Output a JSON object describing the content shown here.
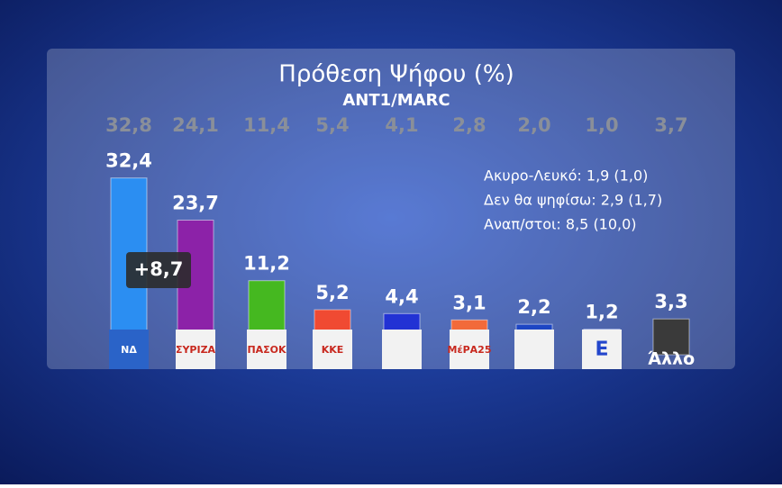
{
  "chart_data": {
    "type": "bar",
    "title": "Πρόθεση Ψήφου (%)",
    "subtitle": "ANT1/MARC",
    "categories": [
      "ΝΔ",
      "ΣΥΡΙΖΑ",
      "ΠΑΣΟΚ",
      "ΚΚΕ",
      null,
      "ΜέΡΑ25",
      null,
      "Ε",
      "Άλλο"
    ],
    "series": [
      {
        "values": [
          32.4,
          23.7,
          11.2,
          5.2,
          4.4,
          3.1,
          2.2,
          1.2,
          3.3
        ],
        "value_labels": [
          "32,4",
          "23,7",
          "11,2",
          "5,2",
          "4,4",
          "3,1",
          "2,2",
          "1,2",
          "3,3"
        ],
        "colors": [
          "#2b8ef2",
          "#8c22a8",
          "#45b820",
          "#f04a32",
          "#2232d4",
          "#f26a3a",
          "#1d46c4",
          "#2346cc",
          "#3a3a3a"
        ]
      },
      {
        "values": [
          32.8,
          24.1,
          11.4,
          5.4,
          4.1,
          2.8,
          2.0,
          1.0,
          3.7
        ],
        "value_labels": [
          "32,8",
          "24,1",
          "11,4",
          "5,4",
          "4,1",
          "2,8",
          "2,0",
          "1,0",
          "3,7"
        ],
        "color": "#8a8f99"
      }
    ],
    "annotation": "+8,7",
    "notes": [
      "Ακυρο-Λευκό: 1,9 (1,0)",
      "Δεν θα ψηφίσω: 2,9 (1,7)",
      "Αναπ/στοι: 8,5 (10,0)"
    ]
  }
}
